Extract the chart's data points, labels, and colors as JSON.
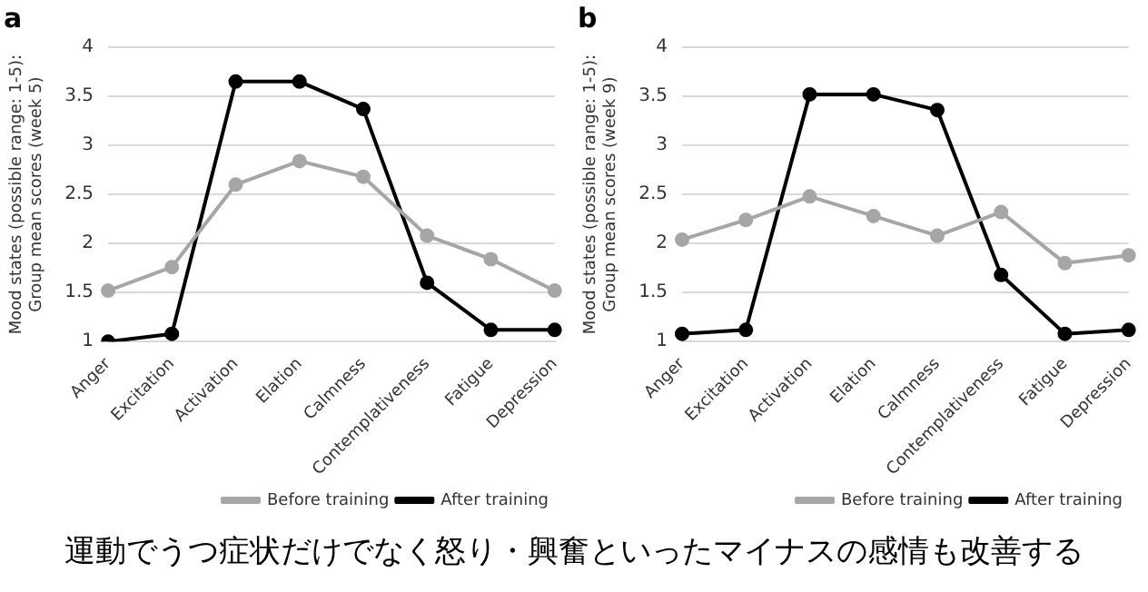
{
  "chart_data": [
    {
      "type": "line",
      "title": "a",
      "ylabel": "Mood states (possible range: 1-5):\nGroup mean scores (week 5)",
      "categories": [
        "Anger",
        "Excitation",
        "Activation",
        "Elation",
        "Calmness",
        "Contemplativeness",
        "Fatigue",
        "Depression"
      ],
      "series": [
        {
          "name": "Before training",
          "color": "#a6a6a6",
          "values": [
            1.52,
            1.76,
            2.6,
            2.84,
            2.68,
            2.08,
            1.84,
            1.52
          ]
        },
        {
          "name": "After training",
          "color": "#000000",
          "values": [
            1.0,
            1.08,
            3.65,
            3.65,
            3.37,
            1.6,
            1.12,
            1.12
          ]
        }
      ],
      "ylim": [
        1,
        4
      ],
      "yticks": [
        1,
        1.5,
        2,
        2.5,
        3,
        3.5,
        4
      ],
      "grid": "y",
      "legend": "bottom right",
      "marker": "circle",
      "line_style": "solid"
    },
    {
      "type": "line",
      "title": "b",
      "ylabel": "Mood states (possible range: 1-5):\nGroup mean scores (week 9)",
      "categories": [
        "Anger",
        "Excitation",
        "Activation",
        "Elation",
        "Calmness",
        "Contemplativeness",
        "Fatigue",
        "Depression"
      ],
      "series": [
        {
          "name": "Before training",
          "color": "#a6a6a6",
          "values": [
            2.04,
            2.24,
            2.48,
            2.28,
            2.08,
            2.32,
            1.8,
            1.88
          ]
        },
        {
          "name": "After training",
          "color": "#000000",
          "values": [
            1.08,
            1.12,
            3.52,
            3.52,
            3.36,
            1.68,
            1.08,
            1.12
          ]
        }
      ],
      "ylim": [
        1,
        4
      ],
      "yticks": [
        1,
        1.5,
        2,
        2.5,
        3,
        3.5,
        4
      ],
      "grid": "y",
      "legend": "bottom right",
      "marker": "circle",
      "line_style": "solid",
      "annotations": [
        "運動でうつ症状だけでなく怒り・興奮といったマイナスの感情も改善する"
      ]
    }
  ]
}
